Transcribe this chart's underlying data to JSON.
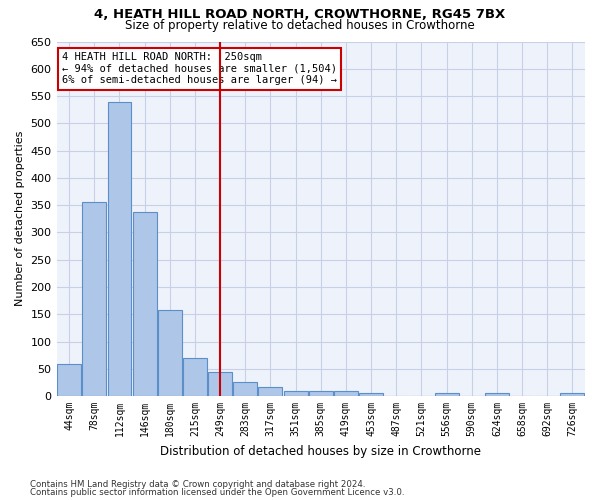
{
  "title": "4, HEATH HILL ROAD NORTH, CROWTHORNE, RG45 7BX",
  "subtitle": "Size of property relative to detached houses in Crowthorne",
  "xlabel": "Distribution of detached houses by size in Crowthorne",
  "ylabel": "Number of detached properties",
  "bar_color": "#aec6e8",
  "bar_edge_color": "#5b8fc9",
  "background_color": "#eef2fa",
  "grid_color": "#c8d0e8",
  "annotation_box_text": "4 HEATH HILL ROAD NORTH:  250sqm\n← 94% of detached houses are smaller (1,504)\n6% of semi-detached houses are larger (94) →",
  "vline_color": "#cc0000",
  "categories": [
    "44sqm",
    "78sqm",
    "112sqm",
    "146sqm",
    "180sqm",
    "215sqm",
    "249sqm",
    "283sqm",
    "317sqm",
    "351sqm",
    "385sqm",
    "419sqm",
    "453sqm",
    "487sqm",
    "521sqm",
    "556sqm",
    "590sqm",
    "624sqm",
    "658sqm",
    "692sqm",
    "726sqm"
  ],
  "values": [
    58,
    355,
    540,
    338,
    157,
    70,
    44,
    25,
    17,
    10,
    9,
    9,
    5,
    0,
    0,
    5,
    0,
    5,
    0,
    0,
    5
  ],
  "ylim": [
    0,
    650
  ],
  "yticks": [
    0,
    50,
    100,
    150,
    200,
    250,
    300,
    350,
    400,
    450,
    500,
    550,
    600,
    650
  ],
  "vline_bar_index": 6,
  "footer_line1": "Contains HM Land Registry data © Crown copyright and database right 2024.",
  "footer_line2": "Contains public sector information licensed under the Open Government Licence v3.0."
}
